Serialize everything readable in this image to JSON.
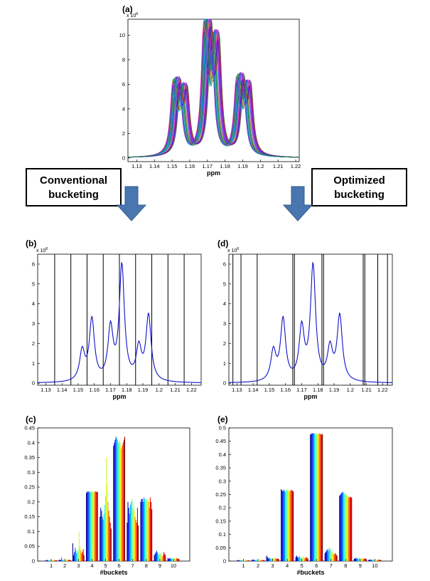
{
  "panel_labels": {
    "a": "(a)",
    "b": "(b)",
    "c": "(c)",
    "d": "(d)",
    "e": "(e)"
  },
  "arrow_boxes": {
    "left": [
      "Conventional",
      "bucketing"
    ],
    "right": [
      "Optimized",
      "bucketing"
    ]
  },
  "colors": {
    "spectrum_line": "#1010cc",
    "arrow": "#4a76b0",
    "arrow_edge": "#2f5a94"
  },
  "chart_data": [
    {
      "id": "a",
      "type": "line",
      "xlabel": "ppm",
      "ylabel": "",
      "exponent": "x 10",
      "x_ticks": [
        "1.13",
        "1.14",
        "1.15",
        "1.16",
        "1.17",
        "1.18",
        "1.19",
        "1.2",
        "1.21",
        "1.22"
      ],
      "y_ticks": [
        "0",
        "2",
        "4",
        "6",
        "8",
        "10"
      ],
      "xlim": [
        1.125,
        1.222
      ],
      "ylim": [
        -0.3,
        11.3
      ],
      "peaks": [
        {
          "center": 1.1525,
          "height": 5.6
        },
        {
          "center": 1.1565,
          "height": 4.9
        },
        {
          "center": 1.17,
          "height": 10.2
        },
        {
          "center": 1.1745,
          "height": 8.8
        },
        {
          "center": 1.1885,
          "height": 5.8
        },
        {
          "center": 1.1925,
          "height": 5.2
        }
      ],
      "series_colors": [
        "#d020d0",
        "#1a1acc",
        "#00a0a0",
        "#228b22",
        "#c8c800",
        "#ff00ff",
        "#3070ff",
        "#cc2020",
        "#00c8ff",
        "#8020c0"
      ]
    },
    {
      "id": "b",
      "type": "line",
      "xlabel": "ppm",
      "exponent": "x 10",
      "x_ticks": [
        "1.13",
        "1.14",
        "1.15",
        "1.16",
        "1.17",
        "1.18",
        "1.19",
        "1.2",
        "1.21",
        "1.22"
      ],
      "y_ticks": [
        "0",
        "1",
        "2",
        "3",
        "4",
        "5",
        "6"
      ],
      "xlim": [
        1.125,
        1.226
      ],
      "ylim": [
        -0.1,
        6.5
      ],
      "peaks": [
        {
          "center": 1.1525,
          "height": 1.5
        },
        {
          "center": 1.1585,
          "height": 3.1
        },
        {
          "center": 1.17,
          "height": 2.6
        },
        {
          "center": 1.177,
          "height": 5.8
        },
        {
          "center": 1.1875,
          "height": 1.6
        },
        {
          "center": 1.1935,
          "height": 3.3
        }
      ],
      "bucket_lines": [
        1.1355,
        1.1455,
        1.1555,
        1.1655,
        1.1755,
        1.1855,
        1.1955,
        1.2055,
        1.2155
      ]
    },
    {
      "id": "d",
      "type": "line",
      "xlabel": "ppm",
      "exponent": "x 10",
      "x_ticks": [
        "1.13",
        "1.14",
        "1.15",
        "1.16",
        "1.17",
        "1.18",
        "1.19",
        "1.2",
        "1.21",
        "1.22"
      ],
      "y_ticks": [
        "0",
        "1",
        "2",
        "3",
        "4",
        "5",
        "6"
      ],
      "xlim": [
        1.125,
        1.226
      ],
      "ylim": [
        -0.1,
        6.5
      ],
      "peaks": [
        {
          "center": 1.1525,
          "height": 1.5
        },
        {
          "center": 1.1585,
          "height": 3.1
        },
        {
          "center": 1.17,
          "height": 2.6
        },
        {
          "center": 1.177,
          "height": 5.8
        },
        {
          "center": 1.1875,
          "height": 1.6
        },
        {
          "center": 1.1935,
          "height": 3.3
        }
      ],
      "bucket_lines": [
        1.1275,
        1.1325,
        1.1425,
        1.1645,
        1.1655,
        1.1825,
        1.1835,
        1.208,
        1.209,
        1.217,
        1.223
      ]
    },
    {
      "id": "c",
      "type": "bar",
      "xlabel": "#buckets",
      "categories": [
        "1",
        "2",
        "3",
        "4",
        "5",
        "6",
        "7",
        "8",
        "9",
        "10"
      ],
      "y_ticks": [
        "0",
        "0.05",
        "0.1",
        "0.15",
        "0.2",
        "0.25",
        "0.3",
        "0.35",
        "0.4",
        "0.45"
      ],
      "ylim": [
        0,
        0.45
      ],
      "values": [
        [
          0.003,
          0.002,
          0.004,
          0.003,
          0.002,
          0.003,
          0.004,
          0.003,
          0.002,
          0.003,
          0.002,
          0.004,
          0.003,
          0.002,
          0.003
        ],
        [
          0.005,
          0.004,
          0.003,
          0.012,
          0.004,
          0.003,
          0.005,
          0.004,
          0.003,
          0.006,
          0.004,
          0.003,
          0.005,
          0.004,
          0.003
        ],
        [
          0.06,
          0.02,
          0.03,
          0.045,
          0.035,
          0.025,
          0.03,
          0.04,
          0.1,
          0.05,
          0.035,
          0.025,
          0.03,
          0.04,
          0.02
        ],
        [
          0.23,
          0.235,
          0.233,
          0.236,
          0.234,
          0.232,
          0.237,
          0.235,
          0.236,
          0.234,
          0.232,
          0.236,
          0.235,
          0.233,
          0.234
        ],
        [
          0.15,
          0.18,
          0.17,
          0.15,
          0.14,
          0.16,
          0.19,
          0.22,
          0.35,
          0.26,
          0.2,
          0.17,
          0.15,
          0.13,
          0.11
        ],
        [
          0.39,
          0.4,
          0.41,
          0.42,
          0.415,
          0.41,
          0.4,
          0.405,
          0.41,
          0.39,
          0.38,
          0.39,
          0.4,
          0.41,
          0.42
        ],
        [
          0.13,
          0.2,
          0.18,
          0.16,
          0.19,
          0.2,
          0.21,
          0.18,
          0.2,
          0.17,
          0.15,
          0.14,
          0.13,
          0.18,
          0.12
        ],
        [
          0.2,
          0.21,
          0.21,
          0.2,
          0.215,
          0.21,
          0.2,
          0.21,
          0.205,
          0.21,
          0.2,
          0.18,
          0.215,
          0.2,
          0.175
        ],
        [
          0.02,
          0.025,
          0.03,
          0.035,
          0.03,
          0.025,
          0.02,
          0.03,
          0.025,
          0.02,
          0.015,
          0.02,
          0.03,
          0.025,
          0.02
        ],
        [
          0.01,
          0.008,
          0.009,
          0.01,
          0.008,
          0.009,
          0.007,
          0.008,
          0.01,
          0.009,
          0.008,
          0.01,
          0.009,
          0.008,
          0.007
        ]
      ]
    },
    {
      "id": "e",
      "type": "bar",
      "xlabel": "#buckets",
      "categories": [
        "1",
        "2",
        "3",
        "4",
        "5",
        "6",
        "7",
        "8",
        "9",
        "10"
      ],
      "y_ticks": [
        "0",
        "0.05",
        "0.1",
        "0.15",
        "0.2",
        "0.25",
        "0.3",
        "0.35",
        "0.4",
        "0.45",
        "0.5"
      ],
      "ylim": [
        0,
        0.5
      ],
      "values": [
        [
          0.003,
          0.004,
          0.003,
          0.002,
          0.003,
          0.004,
          0.003,
          0.002,
          0.003,
          0.002,
          0.004,
          0.003,
          0.002,
          0.003,
          0.002
        ],
        [
          0.005,
          0.004,
          0.006,
          0.004,
          0.003,
          0.005,
          0.004,
          0.006,
          0.003,
          0.004,
          0.005,
          0.003,
          0.004,
          0.003,
          0.004
        ],
        [
          0.02,
          0.015,
          0.01,
          0.012,
          0.01,
          0.008,
          0.01,
          0.012,
          0.009,
          0.01,
          0.012,
          0.008,
          0.01,
          0.009,
          0.008
        ],
        [
          0.27,
          0.265,
          0.262,
          0.268,
          0.264,
          0.26,
          0.266,
          0.27,
          0.263,
          0.267,
          0.262,
          0.265,
          0.268,
          0.264,
          0.262
        ],
        [
          0.015,
          0.02,
          0.015,
          0.012,
          0.018,
          0.015,
          0.01,
          0.012,
          0.015,
          0.018,
          0.012,
          0.01,
          0.015,
          0.012,
          0.01
        ],
        [
          0.475,
          0.478,
          0.48,
          0.479,
          0.481,
          0.478,
          0.476,
          0.48,
          0.479,
          0.477,
          0.478,
          0.48,
          0.476,
          0.475,
          0.477
        ],
        [
          0.03,
          0.035,
          0.04,
          0.045,
          0.038,
          0.05,
          0.045,
          0.04,
          0.035,
          0.03,
          0.028,
          0.025,
          0.03,
          0.025,
          0.02
        ],
        [
          0.245,
          0.25,
          0.255,
          0.258,
          0.26,
          0.255,
          0.25,
          0.252,
          0.248,
          0.245,
          0.24,
          0.238,
          0.242,
          0.24,
          0.238
        ],
        [
          0.008,
          0.01,
          0.012,
          0.009,
          0.01,
          0.008,
          0.012,
          0.01,
          0.009,
          0.011,
          0.01,
          0.008,
          0.009,
          0.01,
          0.008
        ],
        [
          0.005,
          0.004,
          0.006,
          0.005,
          0.004,
          0.005,
          0.006,
          0.004,
          0.005,
          0.004,
          0.005,
          0.006,
          0.004,
          0.005,
          0.004
        ]
      ]
    }
  ]
}
